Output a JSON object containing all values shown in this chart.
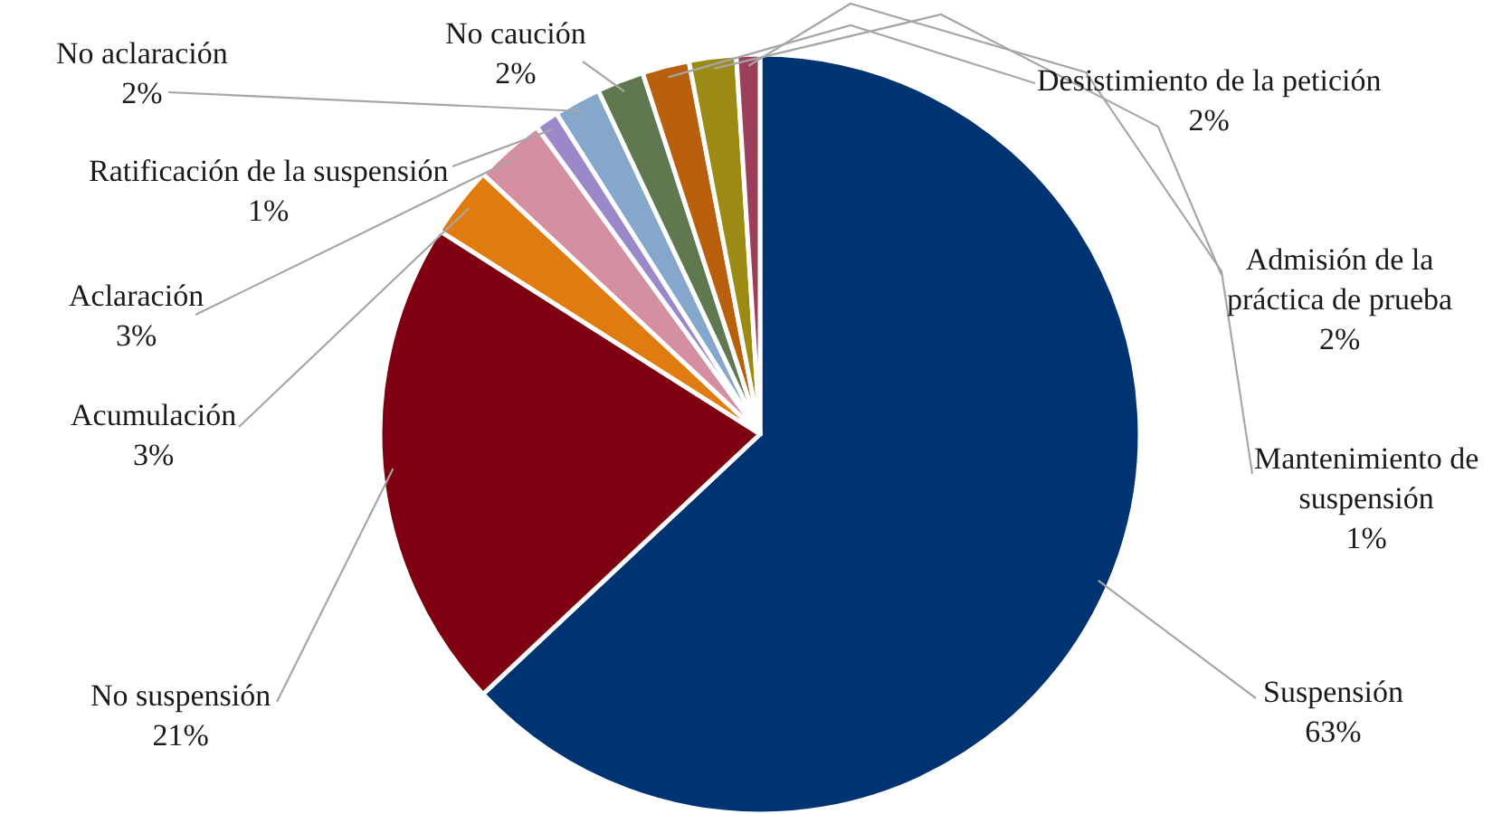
{
  "chart_data": {
    "type": "pie",
    "categories": [
      "Suspensión",
      "No suspensión",
      "Acumulación",
      "Aclaración",
      "Ratificación de la suspensión",
      "No aclaración",
      "No caución",
      "Desistimiento de la petición",
      "Admisión de la práctica de prueba",
      "Mantenimiento de suspensión"
    ],
    "values": [
      63,
      21,
      3,
      3,
      1,
      2,
      2,
      2,
      2,
      1
    ],
    "value_labels": [
      "63%",
      "21%",
      "3%",
      "3%",
      "1%",
      "2%",
      "2%",
      "2%",
      "2%",
      "1%"
    ],
    "colors": [
      "#003371",
      "#7f0010",
      "#e07b10",
      "#d48fa0",
      "#9b88c8",
      "#86a7cc",
      "#607850",
      "#b8600e",
      "#9b8a14",
      "#9b3f5b"
    ],
    "legend": false
  }
}
